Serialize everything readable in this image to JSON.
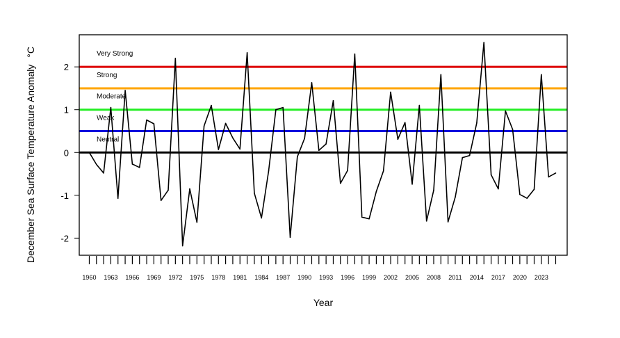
{
  "chart_data": {
    "type": "line",
    "xlabel": "Year",
    "ylabel": "December Sea Surface Temperature Anomaly",
    "ylabel_unit": "°C",
    "xlim": [
      1958.6,
      2026.6
    ],
    "ylim": [
      -2.4,
      2.75
    ],
    "x_tick_labels": [
      "1960",
      "1963",
      "1966",
      "1969",
      "1972",
      "1975",
      "1978",
      "1981",
      "1984",
      "1987",
      "1990",
      "1993",
      "1996",
      "1999",
      "2002",
      "2005",
      "2008",
      "2011",
      "2014",
      "2017",
      "2020",
      "2023"
    ],
    "y_ticks": [
      -2,
      -1,
      0,
      1,
      2
    ],
    "y_tick_labels": [
      "-2",
      "-1",
      "0",
      "1",
      "2"
    ],
    "thresholds": [
      {
        "label": "Very Strong",
        "value": 2.0,
        "color": "#dd0000"
      },
      {
        "label": "Strong",
        "value": 1.5,
        "color": "#ffa500"
      },
      {
        "label": "Moderate",
        "value": 1.0,
        "color": "#22ee22"
      },
      {
        "label": "Weak",
        "value": 0.5,
        "color": "#0000dd"
      },
      {
        "label": "Neutral",
        "value": 0.0,
        "color": "#000000"
      }
    ],
    "series": [
      {
        "color": "#000000",
        "x": [
          1960,
          1961,
          1962,
          1963,
          1964,
          1965,
          1966,
          1967,
          1968,
          1969,
          1970,
          1971,
          1972,
          1973,
          1974,
          1975,
          1976,
          1977,
          1978,
          1979,
          1980,
          1981,
          1982,
          1983,
          1984,
          1985,
          1986,
          1987,
          1988,
          1989,
          1990,
          1991,
          1992,
          1993,
          1994,
          1995,
          1996,
          1997,
          1998,
          1999,
          2000,
          2001,
          2002,
          2003,
          2004,
          2005,
          2006,
          2007,
          2008,
          2009,
          2010,
          2011,
          2012,
          2013,
          2014,
          2015,
          2016,
          2017,
          2018,
          2019,
          2020,
          2021,
          2022,
          2023,
          2024,
          2025
        ],
        "values": [
          0.0,
          -0.28,
          -0.48,
          1.05,
          -1.07,
          1.45,
          -0.27,
          -0.35,
          0.76,
          0.67,
          -1.12,
          -0.88,
          2.2,
          -2.18,
          -0.85,
          -1.63,
          0.62,
          1.1,
          0.07,
          0.68,
          0.34,
          0.08,
          2.33,
          -0.95,
          -1.53,
          -0.43,
          1.0,
          1.05,
          -1.98,
          -0.1,
          0.33,
          1.63,
          0.05,
          0.2,
          1.21,
          -0.72,
          -0.42,
          2.3,
          -1.51,
          -1.55,
          -0.91,
          -0.43,
          1.41,
          0.31,
          0.7,
          -0.74,
          1.1,
          -1.6,
          -0.88,
          1.82,
          -1.62,
          -1.04,
          -0.12,
          -0.07,
          0.69,
          2.57,
          -0.52,
          -0.85,
          0.97,
          0.54,
          -0.98,
          -1.07,
          -0.86,
          1.82,
          -0.57,
          -0.48
        ]
      }
    ]
  }
}
